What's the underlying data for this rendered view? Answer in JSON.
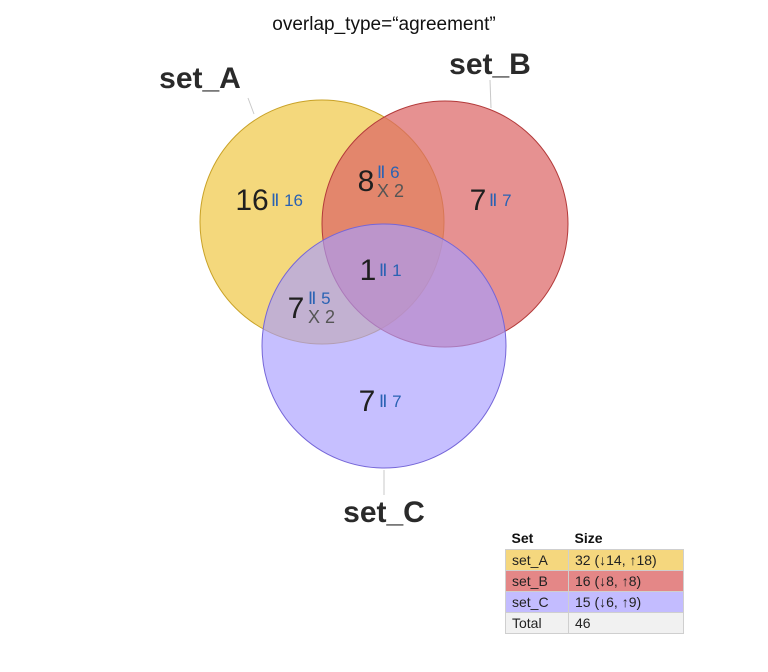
{
  "title": "overlap_type=“agreement”",
  "colors": {
    "set_A": "#f0c94a",
    "set_B": "#dd6767",
    "set_C": "#a89cff",
    "total": "#f1f1f1"
  },
  "set_labels": [
    "set_A",
    "set_B",
    "set_C"
  ],
  "regions": {
    "A_only": {
      "count": "16",
      "agree": "Ⅱ 16",
      "disagree": ""
    },
    "B_only": {
      "count": "7",
      "agree": "Ⅱ 7",
      "disagree": ""
    },
    "C_only": {
      "count": "7",
      "agree": "Ⅱ 7",
      "disagree": ""
    },
    "AB": {
      "count": "8",
      "agree": "Ⅱ 6",
      "disagree": "X 2"
    },
    "AC": {
      "count": "7",
      "agree": "Ⅱ 5",
      "disagree": "X 2"
    },
    "ABC": {
      "count": "1",
      "agree": "Ⅱ 1",
      "disagree": ""
    }
  },
  "legend": {
    "header": {
      "set": "Set",
      "size": "Size"
    },
    "rows": [
      {
        "set": "set_A",
        "size": "32 (↓14, ↑18)"
      },
      {
        "set": "set_B",
        "size": "16 (↓8, ↑8)"
      },
      {
        "set": "set_C",
        "size": "15 (↓6, ↑9)"
      },
      {
        "set": "Total",
        "size": "46"
      }
    ]
  }
}
